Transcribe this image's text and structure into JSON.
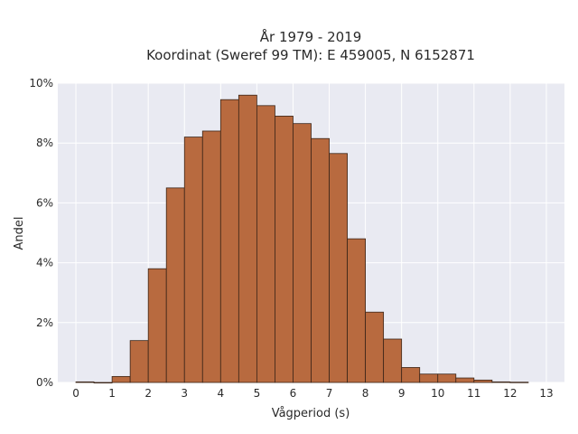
{
  "chart_data": {
    "type": "bar",
    "title_line1": "År 1979 - 2019",
    "title_line2": "Koordinat (Sweref 99 TM): E 459005, N 6152871",
    "xlabel": "Vågperiod (s)",
    "ylabel": "Andel",
    "x_ticks": [
      "0",
      "1",
      "2",
      "3",
      "4",
      "5",
      "6",
      "7",
      "8",
      "9",
      "10",
      "11",
      "12",
      "13"
    ],
    "y_ticks": [
      "0%",
      "2%",
      "4%",
      "6%",
      "8%",
      "10%"
    ],
    "xlim": [
      -0.5,
      13.5
    ],
    "ylim": [
      0,
      10
    ],
    "bin_width": 0.5,
    "bins": [
      {
        "x": 0.0,
        "value": 0.02
      },
      {
        "x": 0.5,
        "value": 0.0
      },
      {
        "x": 1.0,
        "value": 0.2
      },
      {
        "x": 1.5,
        "value": 1.4
      },
      {
        "x": 2.0,
        "value": 3.8
      },
      {
        "x": 2.5,
        "value": 6.5
      },
      {
        "x": 3.0,
        "value": 8.2
      },
      {
        "x": 3.5,
        "value": 8.4
      },
      {
        "x": 4.0,
        "value": 9.45
      },
      {
        "x": 4.5,
        "value": 9.6
      },
      {
        "x": 5.0,
        "value": 9.25
      },
      {
        "x": 5.5,
        "value": 8.9
      },
      {
        "x": 6.0,
        "value": 8.65
      },
      {
        "x": 6.5,
        "value": 8.15
      },
      {
        "x": 7.0,
        "value": 7.65
      },
      {
        "x": 7.5,
        "value": 4.8
      },
      {
        "x": 8.0,
        "value": 2.35
      },
      {
        "x": 8.5,
        "value": 1.45
      },
      {
        "x": 9.0,
        "value": 0.5
      },
      {
        "x": 9.5,
        "value": 0.28
      },
      {
        "x": 10.0,
        "value": 0.28
      },
      {
        "x": 10.5,
        "value": 0.15
      },
      {
        "x": 11.0,
        "value": 0.08
      },
      {
        "x": 11.5,
        "value": 0.02
      },
      {
        "x": 12.0,
        "value": 0.01
      }
    ],
    "grid": true,
    "legend": "none",
    "colors": {
      "bar_fill": "#b86a3f",
      "bar_stroke": "#3b2518",
      "plot_bg": "#e9eaf2",
      "grid": "#ffffff"
    }
  }
}
